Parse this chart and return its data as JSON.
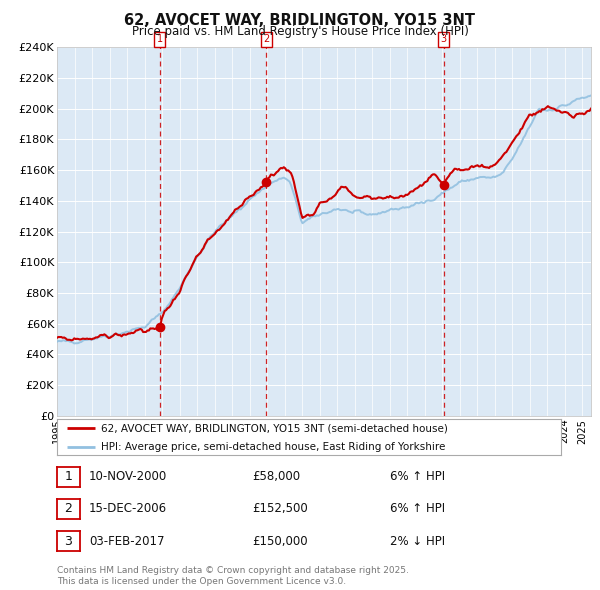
{
  "title": "62, AVOCET WAY, BRIDLINGTON, YO15 3NT",
  "subtitle": "Price paid vs. HM Land Registry's House Price Index (HPI)",
  "legend_line1": "62, AVOCET WAY, BRIDLINGTON, YO15 3NT (semi-detached house)",
  "legend_line2": "HPI: Average price, semi-detached house, East Riding of Yorkshire",
  "footer_line1": "Contains HM Land Registry data © Crown copyright and database right 2025.",
  "footer_line2": "This data is licensed under the Open Government Licence v3.0.",
  "sale_events": [
    {
      "num": 1,
      "date": "10-NOV-2000",
      "price": "£58,000",
      "pct": "6% ↑ HPI",
      "x_year": 2000.87,
      "y_val": 58000
    },
    {
      "num": 2,
      "date": "15-DEC-2006",
      "price": "£152,500",
      "pct": "6% ↑ HPI",
      "x_year": 2006.96,
      "y_val": 152500
    },
    {
      "num": 3,
      "date": "03-FEB-2017",
      "price": "£150,000",
      "pct": "2% ↓ HPI",
      "x_year": 2017.09,
      "y_val": 150000
    }
  ],
  "y_max": 240000,
  "y_min": 0,
  "y_step": 20000,
  "x_min": 1995,
  "x_max": 2025.5,
  "bg_color": "#dce9f5",
  "red_line": "#cc0000",
  "blue_line": "#92c0e0",
  "grid_color": "#ffffff",
  "marker_color": "#cc0000",
  "dashed_color": "#cc0000"
}
